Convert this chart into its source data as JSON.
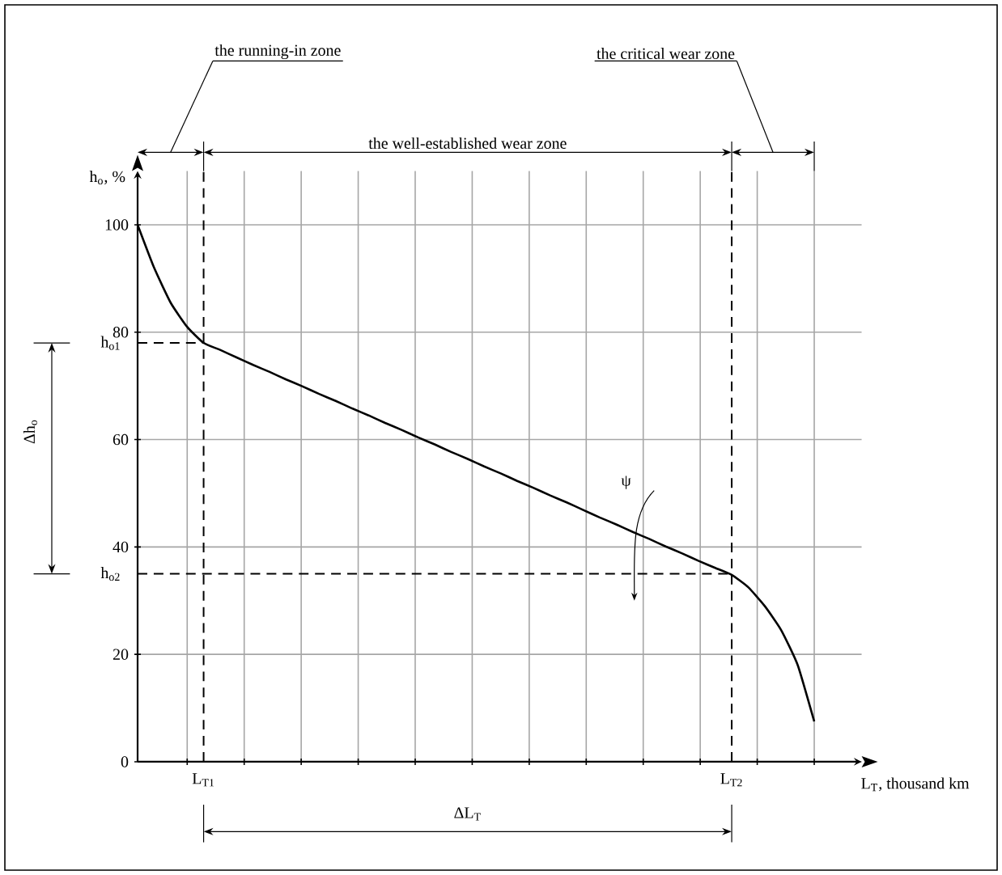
{
  "chart_data": {
    "type": "line",
    "xlabel": "L$_{T}$, thousand km",
    "ylabel": "h$_{o}$, %",
    "categories": [
      null,
      null,
      null,
      null,
      "L$_{T1}$",
      null,
      null,
      null,
      null,
      null,
      null,
      null,
      null,
      null,
      null,
      null,
      null,
      null,
      null,
      null,
      null,
      null,
      null,
      null,
      null,
      null,
      null,
      null,
      null,
      null,
      null,
      null,
      null,
      null,
      null,
      null,
      "L$_{T2}$",
      null,
      null,
      null,
      null,
      null
    ],
    "series": [
      {
        "color": "#000000",
        "values": [
          100,
          92,
          85.5,
          81,
          78,
          76.7,
          75.3,
          73.9,
          72.6,
          71.2,
          69.9,
          68.5,
          67.2,
          65.8,
          64.5,
          63.1,
          61.8,
          60.4,
          59.1,
          57.7,
          56.4,
          55,
          53.7,
          52.3,
          51,
          49.6,
          48.3,
          46.9,
          45.5,
          44.2,
          42.8,
          41.5,
          40.1,
          38.8,
          37.4,
          36.1,
          34.8,
          32.5,
          29,
          24.5,
          18,
          7.5
        ]
      }
    ],
    "ylim": [
      0,
      110
    ],
    "yticks": [
      0,
      20,
      40,
      60,
      80,
      100
    ],
    "grid": true,
    "marker": "none",
    "line_style": "solid",
    "ref_lines": [
      {
        "axis": "y",
        "value": 78,
        "label": "h$_{o1}$",
        "line_style": "dashed"
      },
      {
        "axis": "y",
        "value": 35,
        "label": "h$_{o2}$",
        "line_style": "dashed"
      }
    ],
    "annotations": [
      "the running-in zone",
      "the well-established wear zone",
      "the critical wear zone",
      "Δh$_{o}$",
      "ΔL$_{T}$",
      "ψ"
    ]
  }
}
